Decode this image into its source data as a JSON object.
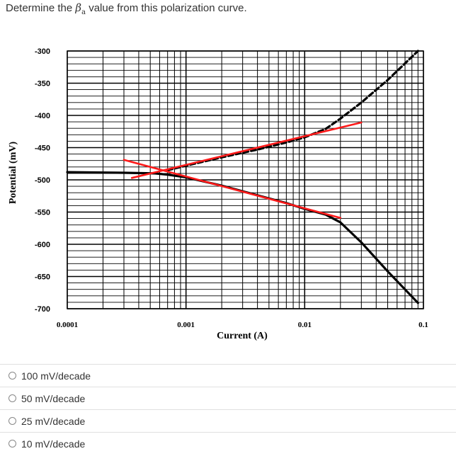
{
  "question": {
    "prefix": "Determine the ",
    "beta_symbol": "β",
    "beta_subscript": "a",
    "suffix": " value from this polarization curve."
  },
  "options": [
    {
      "label": "100 mV/decade"
    },
    {
      "label": "50 mV/decade"
    },
    {
      "label": "25 mV/decade"
    },
    {
      "label": "10 mV/decade"
    }
  ],
  "chart_data": {
    "type": "line",
    "title": "",
    "xlabel": "Current (A)",
    "ylabel": "Potential (mV)",
    "xscale": "log",
    "xlim": [
      0.0001,
      0.1
    ],
    "ylim": [
      -700,
      -300
    ],
    "xticks": [
      0.0001,
      0.001,
      0.01,
      0.1
    ],
    "xtick_labels": [
      "0.0001",
      "0.001",
      "0.01",
      "0.1"
    ],
    "yticks": [
      -300,
      -350,
      -400,
      -450,
      -500,
      -550,
      -600,
      -650,
      -700
    ],
    "ytick_labels": [
      "-300",
      "-350",
      "-400",
      "-450",
      "-500",
      "-550",
      "-600",
      "-650",
      "-700"
    ],
    "grid": true,
    "colors": {
      "curve": "#000000",
      "tafel": "#ff1a1a"
    },
    "series": [
      {
        "style": "solid",
        "color": "#000000",
        "x": [
          0.0001,
          0.0003,
          0.00055,
          0.0007,
          0.001,
          0.002,
          0.004,
          0.007,
          0.01,
          0.015,
          0.02,
          0.03,
          0.05,
          0.09
        ],
        "y": [
          -488,
          -489,
          -490,
          -492,
          -496,
          -509,
          -524,
          -536,
          -545,
          -554,
          -566,
          -597,
          -642,
          -691
        ]
      },
      {
        "style": "dashed",
        "color": "#000000",
        "x": [
          0.0007,
          0.001,
          0.002,
          0.004,
          0.007,
          0.01,
          0.015,
          0.02,
          0.03,
          0.05,
          0.09
        ],
        "y": [
          -485,
          -478,
          -465,
          -453,
          -442,
          -434,
          -421,
          -405,
          -380,
          -345,
          -300
        ]
      },
      {
        "style": "solid",
        "color": "#ff1a1a",
        "x": [
          0.00035,
          0.03
        ],
        "y": [
          -497,
          -411
        ]
      },
      {
        "style": "solid",
        "color": "#ff1a1a",
        "x": [
          0.0003,
          0.02
        ],
        "y": [
          -469,
          -559
        ]
      }
    ]
  }
}
